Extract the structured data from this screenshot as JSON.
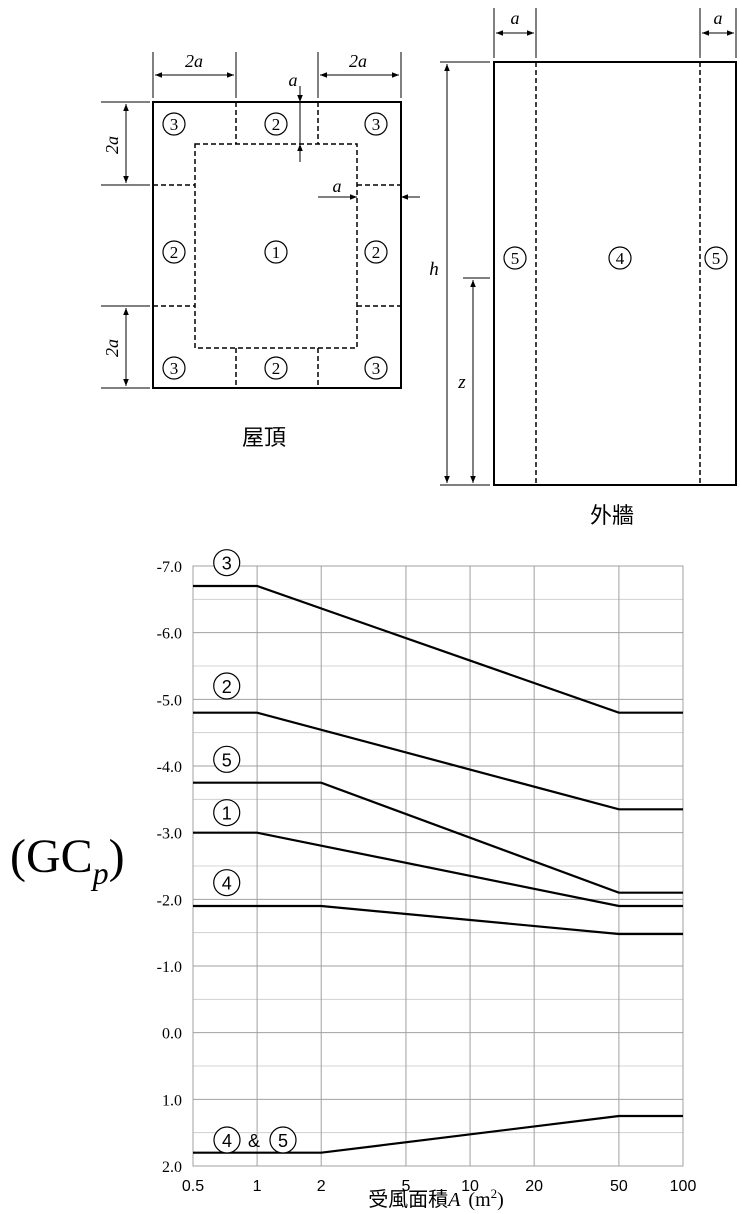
{
  "roof": {
    "caption": "屋頂",
    "dim_top_left": "2a",
    "dim_top_right": "2a",
    "dim_left_top": "2a",
    "dim_left_bottom": "2a",
    "dim_a_top": "a",
    "dim_a_right": "a",
    "zones": {
      "tl": "3",
      "tm": "2",
      "tr": "3",
      "ml": "2",
      "center": "1",
      "mr": "2",
      "bl": "3",
      "bm": "2",
      "br": "3"
    }
  },
  "wall": {
    "caption": "外牆",
    "dim_a_left": "a",
    "dim_a_right": "a",
    "dim_h": "h",
    "dim_z": "z",
    "zones": {
      "left": "5",
      "center": "4",
      "right": "5"
    }
  },
  "chart_data": {
    "type": "line",
    "ylabel_main": "(GC",
    "ylabel_sub": "p",
    "ylabel_close": ")",
    "xlabel_text": "受風面積",
    "xlabel_var": "A",
    "xlabel_unit": "(m",
    "xlabel_exp": "2",
    "xlabel_close": ")",
    "x_ticks": [
      "0.5",
      "1",
      "2",
      "5",
      "10",
      "20",
      "50",
      "100"
    ],
    "y_ticks": [
      "-7.0",
      "-6.0",
      "-5.0",
      "-4.0",
      "-3.0",
      "-2.0",
      "-1.0",
      "0.0",
      "1.0",
      "2.0"
    ],
    "xlim": [
      0.5,
      100
    ],
    "ylim": [
      -7.0,
      2.0
    ],
    "x_scale": "log",
    "y_inverted": true,
    "grid": true,
    "series": [
      {
        "name": "3",
        "x": [
          0.5,
          1,
          50,
          100
        ],
        "y": [
          -6.7,
          -6.7,
          -4.8,
          -4.8
        ]
      },
      {
        "name": "2",
        "x": [
          0.5,
          1,
          50,
          100
        ],
        "y": [
          -4.8,
          -4.8,
          -3.35,
          -3.35
        ]
      },
      {
        "name": "5",
        "x": [
          0.5,
          2,
          50,
          100
        ],
        "y": [
          -3.75,
          -3.75,
          -2.1,
          -2.1
        ]
      },
      {
        "name": "1",
        "x": [
          0.5,
          1,
          50,
          100
        ],
        "y": [
          -3.0,
          -3.0,
          -1.9,
          -1.9
        ]
      },
      {
        "name": "4",
        "x": [
          0.5,
          2,
          50,
          100
        ],
        "y": [
          -1.9,
          -1.9,
          -1.48,
          -1.48
        ]
      },
      {
        "name": "4&5",
        "x": [
          0.5,
          2,
          50,
          100
        ],
        "y": [
          1.8,
          1.8,
          1.25,
          1.25
        ]
      }
    ],
    "annotations": [
      {
        "label": "3",
        "x": 0.72,
        "y": -7.05
      },
      {
        "label": "2",
        "x": 0.72,
        "y": -5.2
      },
      {
        "label": "5",
        "x": 0.72,
        "y": -4.1
      },
      {
        "label": "1",
        "x": 0.72,
        "y": -3.3
      },
      {
        "label": "4",
        "x": 0.72,
        "y": -2.25
      }
    ],
    "combo_annotation": {
      "first": "4",
      "amp": "&",
      "second": "5"
    }
  }
}
